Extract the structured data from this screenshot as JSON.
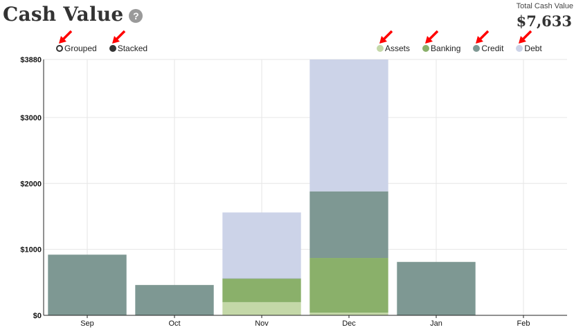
{
  "header": {
    "title": "Cash Value",
    "help_glyph": "?",
    "total_label": "Total Cash Value",
    "total_value": "$7,633"
  },
  "mode_toggle": {
    "grouped_label": "Grouped",
    "stacked_label": "Stacked",
    "selected": "stacked"
  },
  "legend": [
    {
      "label": "Assets",
      "color": "#c4d8a8"
    },
    {
      "label": "Banking",
      "color": "#8ab06a"
    },
    {
      "label": "Credit",
      "color": "#7e9893"
    },
    {
      "label": "Debt",
      "color": "#ccd3e8"
    }
  ],
  "annotation_color": "#ff0000",
  "chart_data": {
    "type": "bar",
    "stacked": true,
    "categories": [
      "Sep",
      "Oct",
      "Nov",
      "Dec",
      "Jan",
      "Feb"
    ],
    "series": [
      {
        "name": "Assets",
        "color": "#c4d8a8",
        "values": [
          0,
          0,
          200,
          40,
          0,
          0
        ]
      },
      {
        "name": "Banking",
        "color": "#8ab06a",
        "values": [
          0,
          0,
          355,
          830,
          0,
          0
        ]
      },
      {
        "name": "Credit",
        "color": "#7e9893",
        "values": [
          920,
          460,
          5,
          1010,
          810,
          5
        ]
      },
      {
        "name": "Debt",
        "color": "#ccd3e8",
        "values": [
          0,
          0,
          1000,
          2000,
          0,
          0
        ]
      }
    ],
    "yticks": [
      0,
      1000,
      2000,
      3000,
      3880
    ],
    "ytick_labels": [
      "$0",
      "$1000",
      "$2000",
      "$3000",
      "$3880"
    ],
    "ylim": [
      0,
      3880
    ],
    "grid": true
  }
}
